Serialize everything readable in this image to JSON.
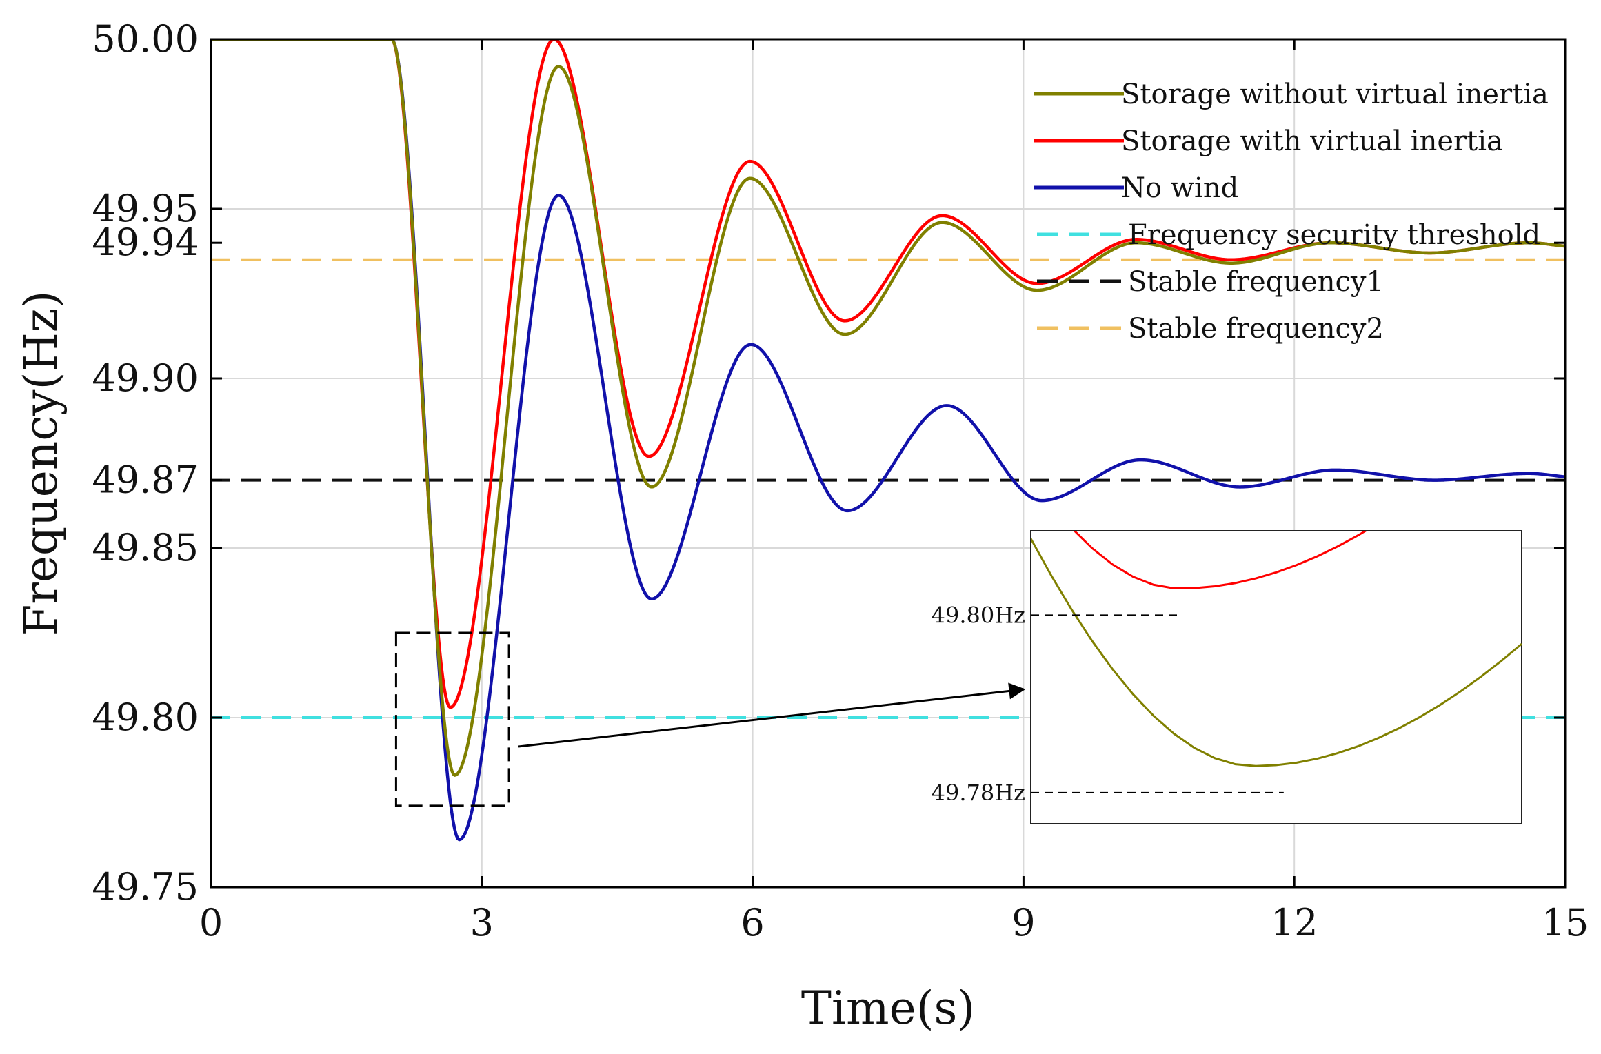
{
  "chart_data": {
    "type": "line",
    "xlabel": "Time(s)",
    "ylabel": "Frequency(Hz)",
    "xlim": [
      0,
      15
    ],
    "ylim": [
      49.75,
      50.0
    ],
    "xticks": [
      0,
      3,
      6,
      9,
      12,
      15
    ],
    "xtick_labels": [
      "0",
      "3",
      "6",
      "9",
      "12",
      "15"
    ],
    "yticks": [
      49.75,
      49.8,
      49.85,
      49.87,
      49.9,
      49.94,
      49.95,
      50.0
    ],
    "ytick_labels": [
      "49.75",
      "49.80",
      "49.85",
      "49.87",
      "49.90",
      "49.94",
      "49.95",
      "50.00"
    ],
    "grid": true,
    "legend_position": "top-right",
    "series": [
      {
        "name": "Storage without virtual inertia",
        "color": "#808000",
        "style": "solid",
        "x": [
          0,
          2.0,
          2.7,
          3.85,
          4.88,
          5.97,
          7.02,
          8.1,
          9.15,
          10.25,
          11.3,
          12.4,
          13.5,
          14.6,
          15
        ],
        "y": [
          50.0,
          50.0,
          49.783,
          49.992,
          49.868,
          49.959,
          49.913,
          49.946,
          49.926,
          49.94,
          49.934,
          49.94,
          49.937,
          49.94,
          49.939
        ]
      },
      {
        "name": "Storage with virtual inertia",
        "color": "#ff0000",
        "style": "solid",
        "x": [
          0,
          2.0,
          2.65,
          3.8,
          4.85,
          5.97,
          7.02,
          8.1,
          9.15,
          10.25,
          11.3,
          12.4,
          13.5,
          14.6,
          15
        ],
        "y": [
          50.0,
          50.0,
          49.803,
          50.0,
          49.877,
          49.964,
          49.917,
          49.948,
          49.928,
          49.941,
          49.935,
          49.94,
          49.937,
          49.94,
          49.939
        ]
      },
      {
        "name": "No wind",
        "color": "#1111aa",
        "style": "solid",
        "x": [
          0,
          2.0,
          2.75,
          3.85,
          4.88,
          5.98,
          7.05,
          8.15,
          9.2,
          10.3,
          11.4,
          12.45,
          13.55,
          14.6,
          15
        ],
        "y": [
          50.0,
          50.0,
          49.764,
          49.954,
          49.835,
          49.91,
          49.861,
          49.892,
          49.864,
          49.876,
          49.868,
          49.873,
          49.87,
          49.872,
          49.871
        ]
      },
      {
        "name": "Frequency security threshold",
        "color": "#40e0e0",
        "style": "dashed",
        "x": [
          0,
          15
        ],
        "y": [
          49.8,
          49.8
        ]
      },
      {
        "name": "Stable frequency1",
        "color": "#111111",
        "style": "dashed",
        "x": [
          0,
          15
        ],
        "y": [
          49.87,
          49.87
        ]
      },
      {
        "name": "Stable frequency2",
        "color": "#f0c060",
        "style": "dashed",
        "x": [
          0,
          15
        ],
        "y": [
          49.935,
          49.935
        ]
      }
    ],
    "zoom_region": {
      "x_range": [
        2.05,
        3.3
      ],
      "y_range": [
        49.774,
        49.825
      ]
    },
    "inset": {
      "x_range": [
        2.55,
        2.88
      ],
      "y_range": [
        49.7765,
        49.8095
      ],
      "annotations": [
        {
          "text": "49.80Hz",
          "value": 49.8
        },
        {
          "text": "49.78Hz",
          "value": 49.78
        }
      ]
    }
  }
}
